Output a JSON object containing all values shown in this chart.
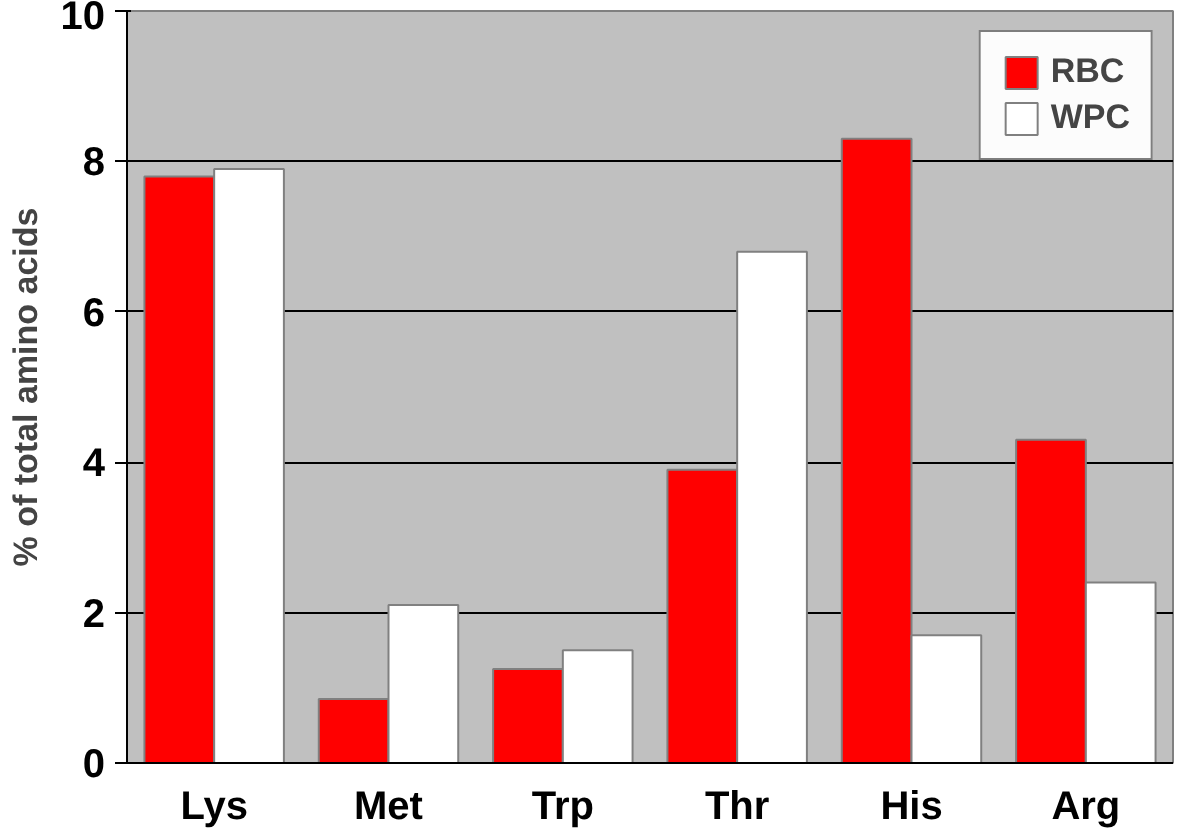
{
  "chart_data": {
    "type": "bar",
    "ylabel": "% of total amino acids",
    "categories": [
      "Lys",
      "Met",
      "Trp",
      "Thr",
      "His",
      "Arg"
    ],
    "series": [
      {
        "name": "RBC",
        "color": "#ff0000",
        "values": [
          7.8,
          0.85,
          1.25,
          3.9,
          8.3,
          4.3
        ]
      },
      {
        "name": "WPC",
        "color": "#ffffff",
        "values": [
          7.9,
          2.1,
          1.5,
          6.8,
          1.7,
          2.4
        ]
      }
    ],
    "ylim": [
      0,
      10
    ],
    "yticks": [
      0,
      2,
      4,
      6,
      8,
      10
    ],
    "grid": "y",
    "legend": "top right"
  }
}
